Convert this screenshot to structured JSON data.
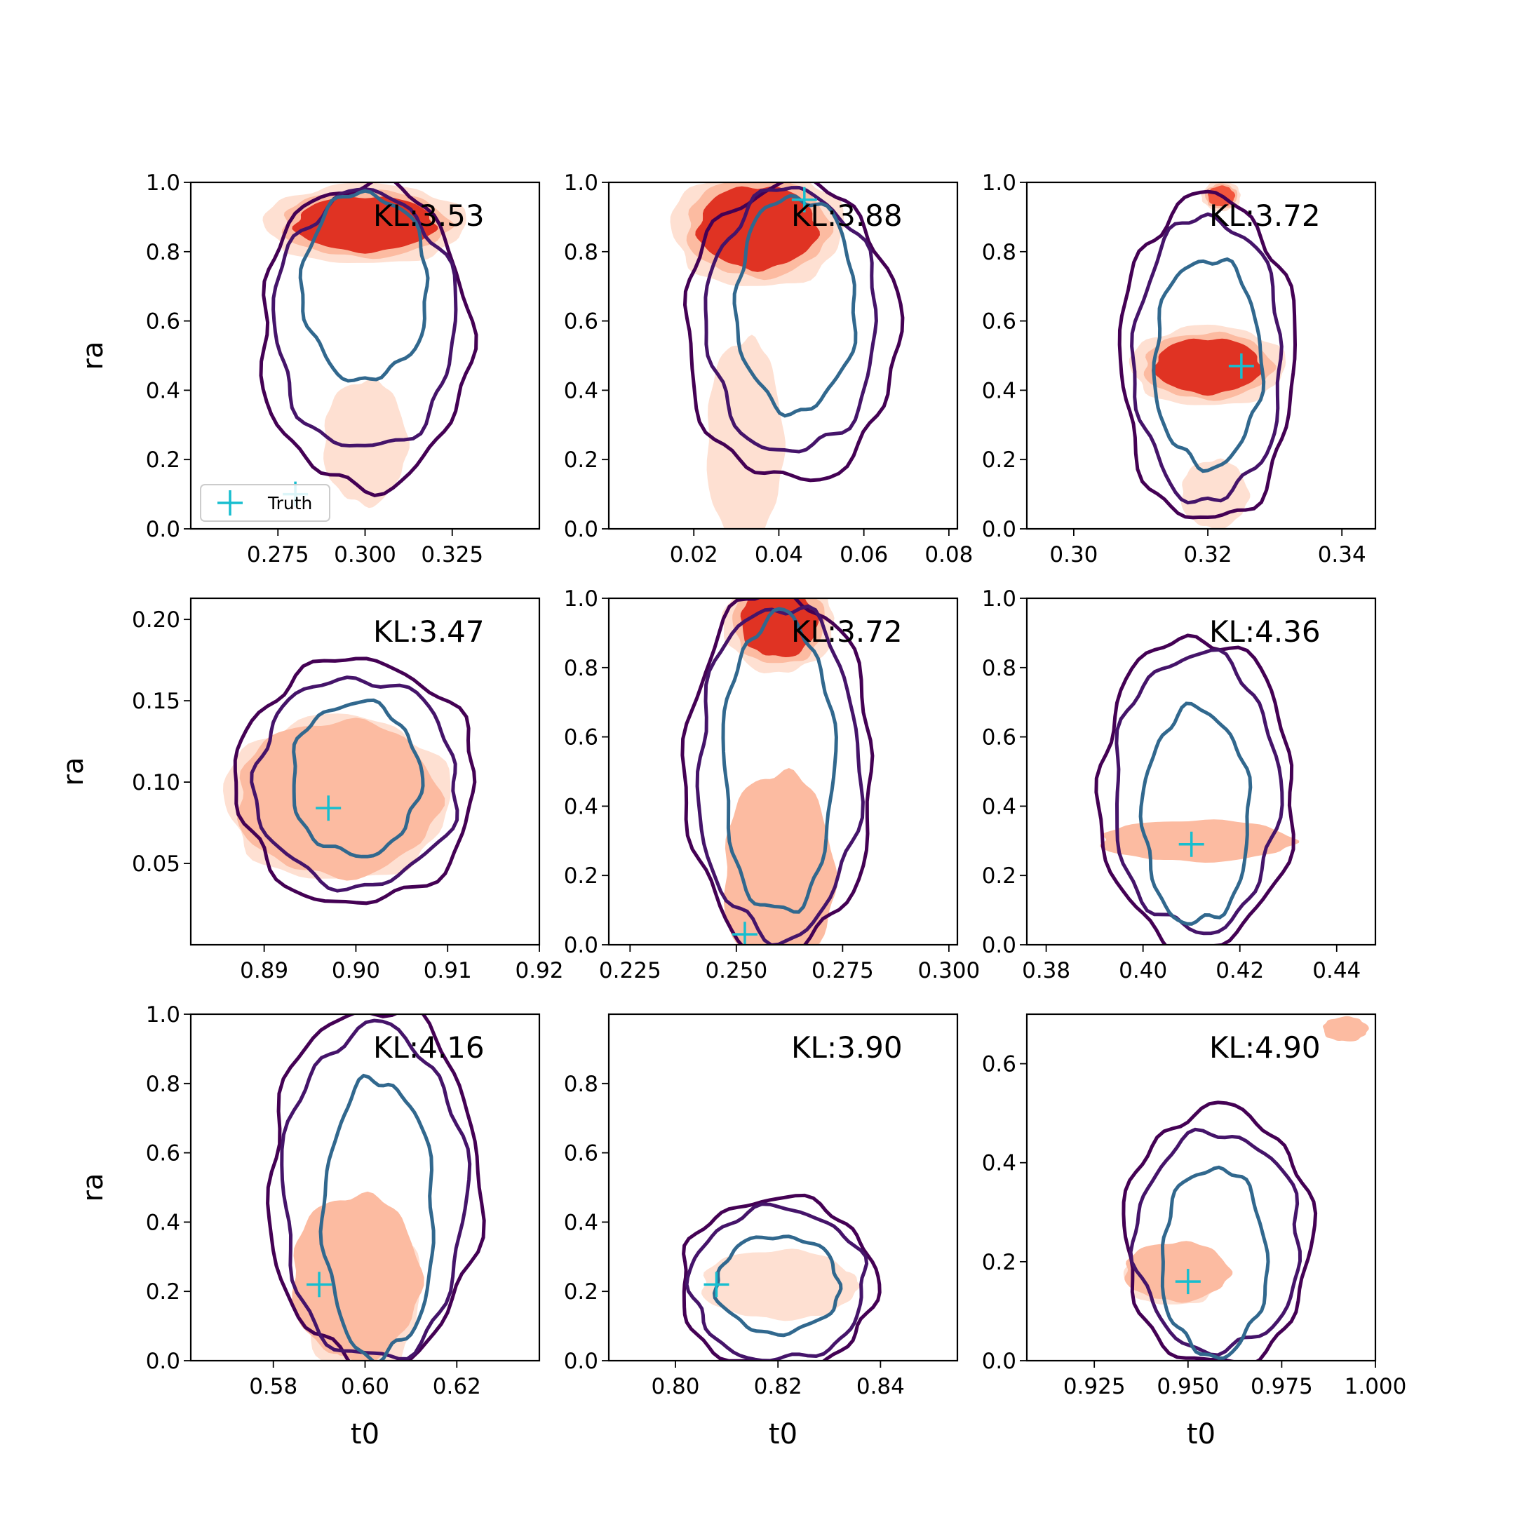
{
  "figure": {
    "colors": {
      "outer_contour": "#440154",
      "mid_contour": "#45146a",
      "inner_contour": "#31688e",
      "truth_marker": "#17becf",
      "density_high": "#e03323",
      "density_mid": "#f2553c",
      "density_low": "#fcbba1",
      "density_faint": "#fee0d2"
    },
    "legend": {
      "label": "Truth",
      "marker": "plus"
    }
  },
  "chart_data": [
    {
      "type": "contour",
      "panel": 1,
      "annotation": "KL:3.53",
      "xlabel": "",
      "ylabel": "ra",
      "xlim": [
        0.25,
        0.35
      ],
      "ylim": [
        0.0,
        1.0
      ],
      "xticks": [
        0.275,
        0.3,
        0.325
      ],
      "xtick_labels": [
        "0.275",
        "0.300",
        "0.325"
      ],
      "yticks": [
        0,
        0.2,
        0.4,
        0.6,
        0.8,
        1.0
      ],
      "ytick_labels": [
        "0.0",
        "0.2",
        "0.4",
        "0.6",
        "0.8",
        "1.0"
      ],
      "truth": [
        0.28,
        0.1
      ],
      "density": [
        {
          "cx": 0.3,
          "cy": 0.88,
          "rx": 0.02,
          "ry": 0.08,
          "level": "high"
        },
        {
          "cx": 0.3,
          "cy": 0.25,
          "rx": 0.012,
          "ry": 0.18,
          "level": "faint"
        }
      ],
      "contours": [
        {
          "cx": 0.3,
          "cy": 0.56,
          "rx": 0.03,
          "ry": 0.44,
          "level": "outer"
        },
        {
          "cx": 0.3,
          "cy": 0.6,
          "rx": 0.026,
          "ry": 0.37,
          "level": "mid"
        },
        {
          "cx": 0.3,
          "cy": 0.7,
          "rx": 0.018,
          "ry": 0.27,
          "level": "inner"
        }
      ]
    },
    {
      "type": "contour",
      "panel": 2,
      "annotation": "KL:3.88",
      "xlabel": "",
      "ylabel": "",
      "xlim": [
        0.0,
        0.082
      ],
      "ylim": [
        0.0,
        1.0
      ],
      "xticks": [
        0.02,
        0.04,
        0.06,
        0.08
      ],
      "xtick_labels": [
        "0.02",
        "0.04",
        "0.06",
        "0.08"
      ],
      "yticks": [
        0,
        0.2,
        0.4,
        0.6,
        0.8,
        1.0
      ],
      "ytick_labels": [
        "0.0",
        "0.2",
        "0.4",
        "0.6",
        "0.8",
        "1.0"
      ],
      "truth": [
        0.046,
        0.95
      ],
      "density": [
        {
          "cx": 0.035,
          "cy": 0.87,
          "rx": 0.014,
          "ry": 0.12,
          "level": "high"
        },
        {
          "cx": 0.032,
          "cy": 0.25,
          "rx": 0.009,
          "ry": 0.3,
          "level": "faint"
        }
      ],
      "contours": [
        {
          "cx": 0.043,
          "cy": 0.57,
          "rx": 0.025,
          "ry": 0.43,
          "level": "outer"
        },
        {
          "cx": 0.043,
          "cy": 0.6,
          "rx": 0.02,
          "ry": 0.38,
          "level": "mid"
        },
        {
          "cx": 0.044,
          "cy": 0.65,
          "rx": 0.014,
          "ry": 0.31,
          "level": "inner"
        }
      ]
    },
    {
      "type": "contour",
      "panel": 3,
      "annotation": "KL:3.72",
      "xlabel": "",
      "ylabel": "",
      "xlim": [
        0.293,
        0.345
      ],
      "ylim": [
        0.0,
        1.0
      ],
      "xticks": [
        0.3,
        0.32,
        0.34
      ],
      "xtick_labels": [
        "0.30",
        "0.32",
        "0.34"
      ],
      "yticks": [
        0,
        0.2,
        0.4,
        0.6,
        0.8,
        1.0
      ],
      "ytick_labels": [
        "0.0",
        "0.2",
        "0.4",
        "0.6",
        "0.8",
        "1.0"
      ],
      "truth": [
        0.325,
        0.47
      ],
      "density": [
        {
          "cx": 0.32,
          "cy": 0.47,
          "rx": 0.008,
          "ry": 0.08,
          "level": "high"
        },
        {
          "cx": 0.321,
          "cy": 0.1,
          "rx": 0.005,
          "ry": 0.1,
          "level": "faint"
        },
        {
          "cx": 0.322,
          "cy": 0.96,
          "rx": 0.002,
          "ry": 0.03,
          "level": "mid"
        }
      ],
      "contours": [
        {
          "cx": 0.32,
          "cy": 0.49,
          "rx": 0.013,
          "ry": 0.47,
          "level": "outer"
        },
        {
          "cx": 0.32,
          "cy": 0.49,
          "rx": 0.011,
          "ry": 0.41,
          "level": "mid"
        },
        {
          "cx": 0.32,
          "cy": 0.48,
          "rx": 0.008,
          "ry": 0.3,
          "level": "inner"
        }
      ]
    },
    {
      "type": "contour",
      "panel": 4,
      "annotation": "KL:3.47",
      "xlabel": "",
      "ylabel": "ra",
      "xlim": [
        0.882,
        0.92
      ],
      "ylim": [
        0.0,
        0.213
      ],
      "xticks": [
        0.89,
        0.9,
        0.91,
        0.92
      ],
      "xtick_labels": [
        "0.89",
        "0.90",
        "0.91",
        "0.92"
      ],
      "yticks": [
        0.05,
        0.1,
        0.15,
        0.2
      ],
      "ytick_labels": [
        "0.05",
        "0.10",
        "0.15",
        "0.20"
      ],
      "truth": [
        0.897,
        0.084
      ],
      "density": [
        {
          "cx": 0.898,
          "cy": 0.09,
          "rx": 0.0085,
          "ry": 0.035,
          "level": "high"
        },
        {
          "cx": 0.898,
          "cy": 0.09,
          "rx": 0.011,
          "ry": 0.048,
          "level": "low"
        }
      ],
      "contours": [
        {
          "cx": 0.9,
          "cy": 0.1,
          "rx": 0.013,
          "ry": 0.075,
          "level": "outer"
        },
        {
          "cx": 0.9,
          "cy": 0.1,
          "rx": 0.011,
          "ry": 0.064,
          "level": "mid"
        },
        {
          "cx": 0.9,
          "cy": 0.102,
          "rx": 0.007,
          "ry": 0.047,
          "level": "inner"
        }
      ]
    },
    {
      "type": "contour",
      "panel": 5,
      "annotation": "KL:3.72",
      "xlabel": "",
      "ylabel": "",
      "xlim": [
        0.22,
        0.302
      ],
      "ylim": [
        0.0,
        1.0
      ],
      "xticks": [
        0.225,
        0.25,
        0.275,
        0.3
      ],
      "xtick_labels": [
        "0.225",
        "0.250",
        "0.275",
        "0.300"
      ],
      "yticks": [
        0,
        0.2,
        0.4,
        0.6,
        0.8,
        1.0
      ],
      "ytick_labels": [
        "0.0",
        "0.2",
        "0.4",
        "0.6",
        "0.8",
        "1.0"
      ],
      "truth": [
        0.252,
        0.03
      ],
      "density": [
        {
          "cx": 0.26,
          "cy": 0.15,
          "rx": 0.008,
          "ry": 0.2,
          "level": "high"
        },
        {
          "cx": 0.26,
          "cy": 0.2,
          "rx": 0.013,
          "ry": 0.3,
          "level": "low"
        },
        {
          "cx": 0.26,
          "cy": 0.93,
          "rx": 0.009,
          "ry": 0.1,
          "level": "high"
        }
      ],
      "contours": [
        {
          "cx": 0.26,
          "cy": 0.5,
          "rx": 0.022,
          "ry": 0.52,
          "level": "outer"
        },
        {
          "cx": 0.26,
          "cy": 0.5,
          "rx": 0.019,
          "ry": 0.48,
          "level": "mid"
        },
        {
          "cx": 0.26,
          "cy": 0.52,
          "rx": 0.013,
          "ry": 0.43,
          "level": "inner"
        }
      ]
    },
    {
      "type": "contour",
      "panel": 6,
      "annotation": "KL:4.36",
      "xlabel": "",
      "ylabel": "",
      "xlim": [
        0.376,
        0.448
      ],
      "ylim": [
        0.0,
        1.0
      ],
      "xticks": [
        0.38,
        0.4,
        0.42,
        0.44
      ],
      "xtick_labels": [
        "0.38",
        "0.40",
        "0.42",
        "0.44"
      ],
      "yticks": [
        0,
        0.2,
        0.4,
        0.6,
        0.8,
        1.0
      ],
      "ytick_labels": [
        "0.0",
        "0.2",
        "0.4",
        "0.6",
        "0.8",
        "1.0"
      ],
      "truth": [
        0.41,
        0.29
      ],
      "density": [
        {
          "cx": 0.411,
          "cy": 0.3,
          "rx": 0.01,
          "ry": 0.035,
          "level": "high"
        },
        {
          "cx": 0.411,
          "cy": 0.3,
          "rx": 0.02,
          "ry": 0.06,
          "level": "low"
        }
      ],
      "contours": [
        {
          "cx": 0.411,
          "cy": 0.44,
          "rx": 0.02,
          "ry": 0.45,
          "level": "outer"
        },
        {
          "cx": 0.411,
          "cy": 0.44,
          "rx": 0.017,
          "ry": 0.4,
          "level": "mid"
        },
        {
          "cx": 0.411,
          "cy": 0.37,
          "rx": 0.011,
          "ry": 0.31,
          "level": "inner"
        }
      ]
    },
    {
      "type": "contour",
      "panel": 7,
      "annotation": "KL:4.16",
      "xlabel": "t0",
      "ylabel": "ra",
      "xlim": [
        0.562,
        0.638
      ],
      "ylim": [
        0.0,
        1.0
      ],
      "xticks": [
        0.58,
        0.6,
        0.62
      ],
      "xtick_labels": [
        "0.58",
        "0.60",
        "0.62"
      ],
      "yticks": [
        0,
        0.2,
        0.4,
        0.6,
        0.8,
        1.0
      ],
      "ytick_labels": [
        "0.0",
        "0.2",
        "0.4",
        "0.6",
        "0.8",
        "1.0"
      ],
      "truth": [
        0.59,
        0.22
      ],
      "density": [
        {
          "cx": 0.599,
          "cy": 0.2,
          "rx": 0.009,
          "ry": 0.17,
          "level": "high"
        },
        {
          "cx": 0.598,
          "cy": 0.24,
          "rx": 0.014,
          "ry": 0.24,
          "level": "low"
        }
      ],
      "contours": [
        {
          "cx": 0.602,
          "cy": 0.5,
          "rx": 0.023,
          "ry": 0.52,
          "level": "outer"
        },
        {
          "cx": 0.602,
          "cy": 0.48,
          "rx": 0.02,
          "ry": 0.48,
          "level": "mid"
        },
        {
          "cx": 0.603,
          "cy": 0.41,
          "rx": 0.012,
          "ry": 0.4,
          "level": "inner"
        }
      ]
    },
    {
      "type": "contour",
      "panel": 8,
      "annotation": "KL:3.90",
      "xlabel": "t0",
      "ylabel": "",
      "xlim": [
        0.787,
        0.855
      ],
      "ylim": [
        0.0,
        1.0
      ],
      "xticks": [
        0.8,
        0.82,
        0.84
      ],
      "xtick_labels": [
        "0.80",
        "0.82",
        "0.84"
      ],
      "yticks": [
        0,
        0.2,
        0.4,
        0.6,
        0.8
      ],
      "ytick_labels": [
        "0.0",
        "0.2",
        "0.4",
        "0.6",
        "0.8"
      ],
      "truth": [
        0.808,
        0.22
      ],
      "density": [
        {
          "cx": 0.821,
          "cy": 0.21,
          "rx": 0.01,
          "ry": 0.06,
          "level": "mid"
        },
        {
          "cx": 0.82,
          "cy": 0.22,
          "rx": 0.015,
          "ry": 0.1,
          "level": "faint"
        }
      ],
      "contours": [
        {
          "cx": 0.82,
          "cy": 0.22,
          "rx": 0.019,
          "ry": 0.25,
          "level": "outer"
        },
        {
          "cx": 0.82,
          "cy": 0.22,
          "rx": 0.017,
          "ry": 0.22,
          "level": "mid"
        },
        {
          "cx": 0.82,
          "cy": 0.22,
          "rx": 0.012,
          "ry": 0.14,
          "level": "inner"
        }
      ]
    },
    {
      "type": "contour",
      "panel": 9,
      "annotation": "KL:4.90",
      "xlabel": "t0",
      "ylabel": "",
      "xlim": [
        0.907,
        1.0
      ],
      "ylim": [
        0.0,
        0.7
      ],
      "xticks": [
        0.925,
        0.95,
        0.975,
        1.0
      ],
      "xtick_labels": [
        "0.925",
        "0.950",
        "0.975",
        "1.000"
      ],
      "yticks": [
        0,
        0.2,
        0.4,
        0.6
      ],
      "ytick_labels": [
        "0.0",
        "0.2",
        "0.4",
        "0.6"
      ],
      "truth": [
        0.95,
        0.16
      ],
      "density": [
        {
          "cx": 0.946,
          "cy": 0.17,
          "rx": 0.009,
          "ry": 0.04,
          "level": "high"
        },
        {
          "cx": 0.947,
          "cy": 0.18,
          "rx": 0.014,
          "ry": 0.06,
          "level": "low"
        },
        {
          "cx": 0.992,
          "cy": 0.67,
          "rx": 0.006,
          "ry": 0.025,
          "level": "low"
        }
      ],
      "contours": [
        {
          "cx": 0.958,
          "cy": 0.25,
          "rx": 0.025,
          "ry": 0.26,
          "level": "outer"
        },
        {
          "cx": 0.958,
          "cy": 0.24,
          "rx": 0.022,
          "ry": 0.22,
          "level": "mid"
        },
        {
          "cx": 0.957,
          "cy": 0.2,
          "rx": 0.014,
          "ry": 0.19,
          "level": "inner"
        }
      ]
    }
  ]
}
